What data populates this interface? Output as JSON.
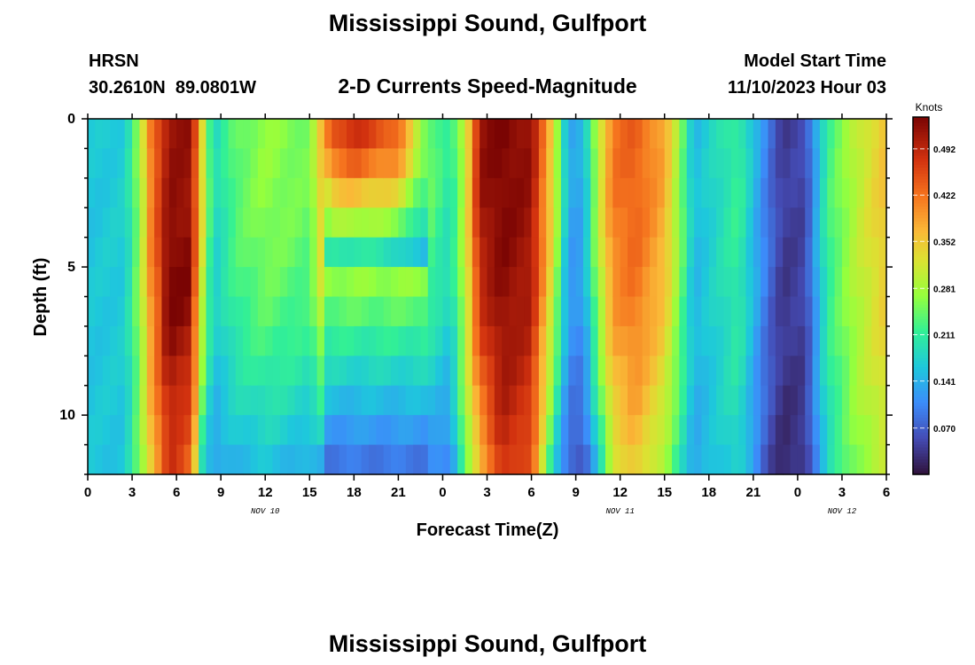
{
  "header": {
    "title": "Mississippi Sound, Gulfport",
    "station_id": "HRSN",
    "station_coords": "30.2610N  89.0801W",
    "subtitle": "2-D Currents Speed-Magnitude",
    "model_start_label": "Model Start Time",
    "model_start_value": "11/10/2023 Hour 03"
  },
  "footer": {
    "next_title": "Mississippi Sound, Gulfport"
  },
  "chart_data": {
    "type": "heatmap",
    "title": "Mississippi Sound, Gulfport",
    "subtitle": "2-D Currents Speed-Magnitude",
    "xlabel": "Forecast Time(Z)",
    "ylabel": "Depth (ft)",
    "x_tick_labels": [
      "0",
      "3",
      "6",
      "9",
      "12",
      "15",
      "18",
      "21",
      "0",
      "3",
      "6",
      "9",
      "12",
      "15",
      "18",
      "21",
      "0",
      "3",
      "6"
    ],
    "x_range_hours": [
      0,
      54
    ],
    "date_labels": [
      {
        "text": "NOV 10",
        "hour": 12
      },
      {
        "text": "NOV 11",
        "hour": 36
      },
      {
        "text": "NOV 12",
        "hour": 51
      }
    ],
    "y_ticks": [
      0,
      5,
      10
    ],
    "y_range_ft": [
      0,
      12
    ],
    "y_inverted": true,
    "colorbar": {
      "label": "Knots",
      "ticks": [
        "0.070",
        "0.141",
        "0.211",
        "0.281",
        "0.352",
        "0.422",
        "0.492"
      ],
      "min": 0.0,
      "max": 0.54
    },
    "time_step_hours": 0.5,
    "depth_step_ft": 1,
    "keyframes": [
      {
        "t": 0,
        "s": [
          0.16,
          0.16
        ]
      },
      {
        "t": 2.5,
        "s": [
          0.17,
          0.16
        ]
      },
      {
        "t": 3.5,
        "s": [
          0.27,
          0.25
        ]
      },
      {
        "t": 4.3,
        "s": [
          0.42,
          0.35
        ]
      },
      {
        "t": 5.5,
        "s": [
          0.52,
          0.48
        ]
      },
      {
        "t": 7,
        "s": [
          0.52,
          0.42
        ]
      },
      {
        "t": 7.8,
        "s": [
          0.32,
          0.17
        ]
      },
      {
        "t": 8.5,
        "s": [
          0.18,
          0.12
        ]
      },
      {
        "t": 10,
        "s": [
          0.24,
          0.14
        ]
      },
      {
        "t": 12,
        "s": [
          0.27,
          0.15
        ]
      },
      {
        "t": 15,
        "s": [
          0.25,
          0.13
        ]
      },
      {
        "t": 16.5,
        "s": [
          0.45,
          0.11
        ]
      },
      {
        "t": 18,
        "s": [
          0.48,
          0.11
        ]
      },
      {
        "t": 21,
        "s": [
          0.43,
          0.1
        ]
      },
      {
        "t": 22.5,
        "s": [
          0.27,
          0.1
        ]
      },
      {
        "t": 24.5,
        "s": [
          0.2,
          0.09
        ]
      },
      {
        "t": 25.5,
        "s": [
          0.3,
          0.25
        ]
      },
      {
        "t": 26.5,
        "s": [
          0.52,
          0.34
        ]
      },
      {
        "t": 28,
        "s": [
          0.54,
          0.48
        ]
      },
      {
        "t": 30,
        "s": [
          0.52,
          0.44
        ]
      },
      {
        "t": 31.5,
        "s": [
          0.33,
          0.17
        ]
      },
      {
        "t": 32.5,
        "s": [
          0.13,
          0.07
        ]
      },
      {
        "t": 33.5,
        "s": [
          0.14,
          0.05
        ]
      },
      {
        "t": 34.5,
        "s": [
          0.3,
          0.16
        ]
      },
      {
        "t": 35.5,
        "s": [
          0.42,
          0.3
        ]
      },
      {
        "t": 37,
        "s": [
          0.44,
          0.35
        ]
      },
      {
        "t": 39,
        "s": [
          0.38,
          0.27
        ]
      },
      {
        "t": 40,
        "s": [
          0.27,
          0.2
        ]
      },
      {
        "t": 41,
        "s": [
          0.15,
          0.13
        ]
      },
      {
        "t": 44,
        "s": [
          0.22,
          0.18
        ]
      },
      {
        "t": 46,
        "s": [
          0.09,
          0.05
        ]
      },
      {
        "t": 47,
        "s": [
          0.04,
          0.02
        ]
      },
      {
        "t": 48.5,
        "s": [
          0.05,
          0.03
        ]
      },
      {
        "t": 50,
        "s": [
          0.22,
          0.18
        ]
      },
      {
        "t": 52,
        "s": [
          0.3,
          0.26
        ]
      },
      {
        "t": 54,
        "s": [
          0.36,
          0.3
        ]
      }
    ],
    "features": [
      {
        "t0": 5.0,
        "t1": 7.0,
        "depth": 6,
        "boost": 0.03
      },
      {
        "t0": 16.0,
        "t1": 22.0,
        "depth": 4,
        "kind": "shallow-lobe"
      }
    ]
  }
}
